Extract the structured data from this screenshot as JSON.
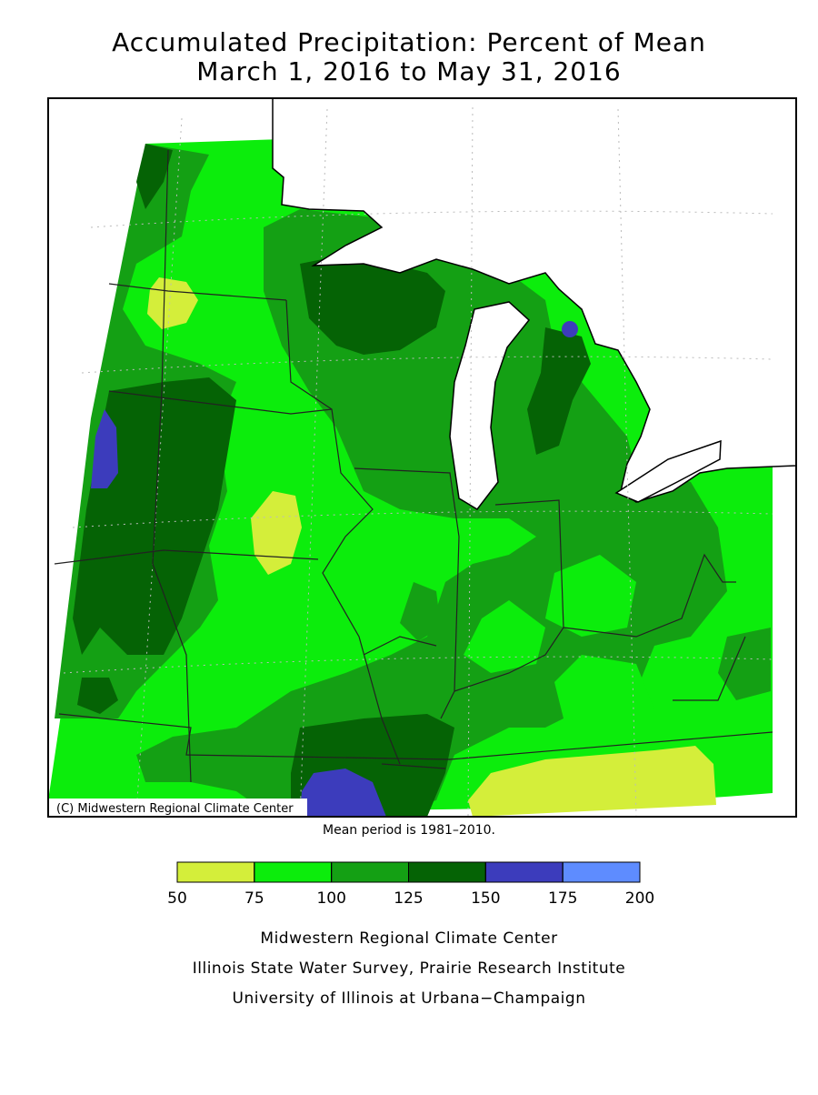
{
  "header": {
    "title": "Accumulated Precipitation: Percent of Mean",
    "subtitle": "March 1, 2016 to May 31, 2016"
  },
  "map": {
    "credit": "(C) Midwestern Regional Climate Center",
    "note": "Mean period is 1981–2010."
  },
  "legend": {
    "ticks": [
      50,
      75,
      100,
      125,
      150,
      175,
      200
    ],
    "colors": [
      "#d4ee3a",
      "#0ced0c",
      "#14a014",
      "#056305",
      "#3c3cbc",
      "#5e8cff"
    ]
  },
  "footer": {
    "lines": [
      "Midwestern Regional Climate Center",
      "Illinois State Water Survey, Prairie Research Institute",
      "University of Illinois at Urbana−Champaign"
    ]
  }
}
